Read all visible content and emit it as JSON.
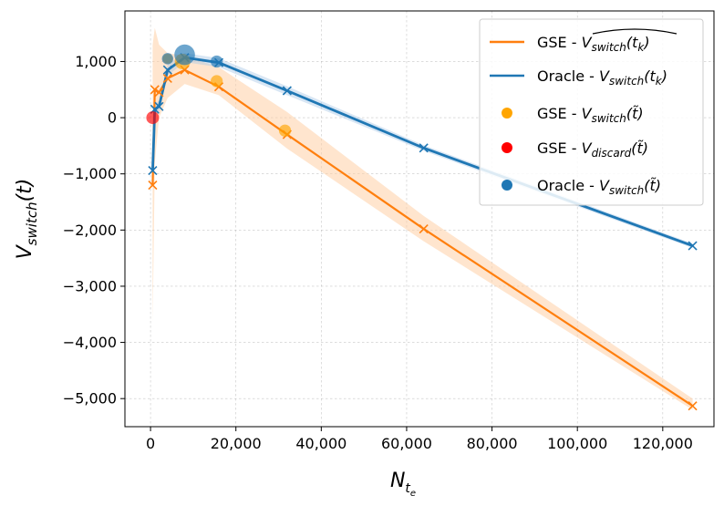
{
  "chart_data": {
    "type": "line",
    "title": "",
    "xlabel": "N_{t_e}",
    "ylabel": "V_{switch}(t)",
    "xlim": [
      -6000,
      132000
    ],
    "ylim": [
      -5500,
      1900
    ],
    "grid": true,
    "legend_position": "top-right",
    "x_ticks": [
      0,
      20000,
      40000,
      60000,
      80000,
      100000,
      120000
    ],
    "x_tick_labels": [
      "0",
      "20,000",
      "40,000",
      "60,000",
      "80,000",
      "100,000",
      "120,000"
    ],
    "y_ticks": [
      1000,
      0,
      -1000,
      -2000,
      -3000,
      -4000,
      -5000
    ],
    "y_tick_labels": [
      "1,000",
      "0",
      "−1,000",
      "−2,000",
      "−3,000",
      "−4,000",
      "−5,000"
    ],
    "colors": {
      "gse": "#ff7f0e",
      "gse_point": "#ffa500",
      "discard": "#ff0000",
      "oracle": "#1f77b4"
    },
    "series": [
      {
        "name": "GSE - V_switch(t_k) estimate",
        "kind": "line",
        "color": "#ff7f0e",
        "x": [
          500,
          1000,
          2000,
          4000,
          8000,
          16000,
          32000,
          64000,
          127000
        ],
        "y": [
          -1200,
          500,
          450,
          700,
          850,
          550,
          -300,
          -1980,
          -5130
        ],
        "band_upper": [
          1300,
          1600,
          1300,
          1150,
          1100,
          900,
          100,
          -1750,
          -5000
        ],
        "band_lower": [
          -3650,
          -800,
          0,
          350,
          600,
          400,
          -550,
          -2200,
          -5200
        ]
      },
      {
        "name": "Oracle - V_switch(t_k)",
        "kind": "line",
        "color": "#1f77b4",
        "x": [
          500,
          1000,
          2000,
          4000,
          8000,
          16000,
          32000,
          64000,
          127000
        ],
        "y": [
          -940,
          150,
          200,
          850,
          1070,
          980,
          480,
          -540,
          -2280
        ],
        "band_upper": [
          -850,
          250,
          300,
          950,
          1150,
          1060,
          560,
          -490,
          -2240
        ],
        "band_lower": [
          -1050,
          50,
          100,
          750,
          990,
          900,
          400,
          -590,
          -2320
        ]
      },
      {
        "name": "GSE - V_switch(t~)",
        "kind": "scatter",
        "color": "#ffa500",
        "x": [
          4000,
          7500,
          15500,
          31500
        ],
        "y": [
          1050,
          1000,
          650,
          -230
        ],
        "weight": [
          0.6,
          1.5,
          0.9,
          0.9
        ]
      },
      {
        "name": "GSE - V_discard(t~)",
        "kind": "scatter",
        "color": "#ff0000",
        "x": [
          500
        ],
        "y": [
          0
        ],
        "weight": [
          1.0
        ]
      },
      {
        "name": "Oracle - V_switch(t~)",
        "kind": "scatter",
        "color": "#1f77b4",
        "x": [
          4000,
          8000,
          15500
        ],
        "y": [
          1050,
          1120,
          1000
        ],
        "weight": [
          0.8,
          2.6,
          0.9
        ]
      }
    ],
    "legend": [
      {
        "label": "GSE - ",
        "math": "V̂switch(tk)",
        "kind": "line",
        "color": "#ff7f0e"
      },
      {
        "label": "Oracle - ",
        "math": "Vswitch(tk)",
        "kind": "line",
        "color": "#1f77b4"
      },
      {
        "label": "GSE - ",
        "math": "Vswitch(t̃)",
        "kind": "marker",
        "color": "#ffa500"
      },
      {
        "label": "GSE - ",
        "math": "Vdiscard(t̃)",
        "kind": "marker",
        "color": "#ff0000"
      },
      {
        "label": "Oracle - ",
        "math": "Vswitch(t̃)",
        "kind": "marker",
        "color": "#1f77b4"
      }
    ]
  }
}
